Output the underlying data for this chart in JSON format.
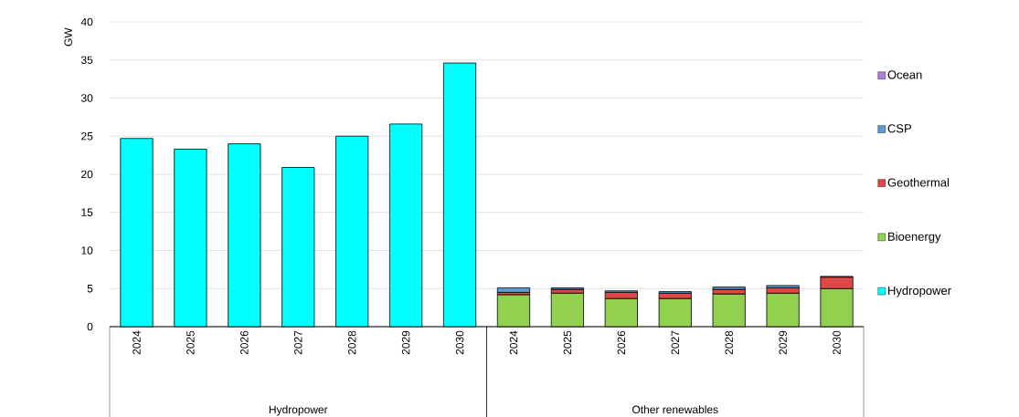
{
  "chart_data": {
    "type": "bar",
    "stacked": true,
    "ylabel": "GW",
    "ylim": [
      0,
      40
    ],
    "yticks": [
      0,
      5,
      10,
      15,
      20,
      25,
      30,
      35,
      40
    ],
    "grid": "y",
    "legend": "right",
    "categories": [
      "2024",
      "2025",
      "2026",
      "2027",
      "2028",
      "2029",
      "2030",
      "2024",
      "2025",
      "2026",
      "2027",
      "2028",
      "2029",
      "2030"
    ],
    "annotations": [
      "Hydropower",
      "Other renewables"
    ],
    "series": [
      {
        "name": "Hydropower",
        "color": "#00ffff",
        "values": [
          24.7,
          23.3,
          24.0,
          20.9,
          25.0,
          26.6,
          34.6,
          null,
          null,
          null,
          null,
          null,
          null,
          null
        ]
      },
      {
        "name": "Bioenergy",
        "color": "#92d050",
        "values": [
          null,
          null,
          null,
          null,
          null,
          null,
          null,
          4.2,
          4.4,
          3.7,
          3.7,
          4.3,
          4.4,
          5.0
        ]
      },
      {
        "name": "Geothermal",
        "color": "#e04848",
        "values": [
          null,
          null,
          null,
          null,
          null,
          null,
          null,
          0.3,
          0.5,
          0.8,
          0.7,
          0.6,
          0.7,
          1.5
        ]
      },
      {
        "name": "CSP",
        "color": "#5b9bd5",
        "values": [
          null,
          null,
          null,
          null,
          null,
          null,
          null,
          0.6,
          0.2,
          0.2,
          0.2,
          0.3,
          0.3,
          0.1
        ]
      },
      {
        "name": "Ocean",
        "color": "#b07fd8",
        "values": [
          null,
          null,
          null,
          null,
          null,
          null,
          null,
          null,
          null,
          null,
          null,
          null,
          null,
          null
        ]
      }
    ]
  }
}
